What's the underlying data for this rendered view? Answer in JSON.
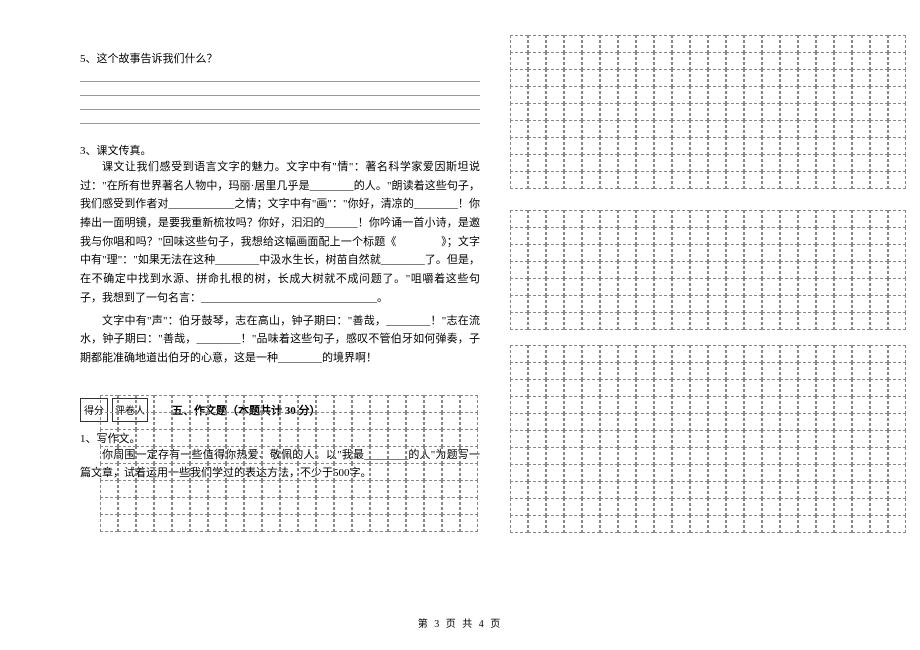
{
  "q5_label": "5、这个故事告诉我们什么？",
  "section3_label": "3、课文传真。",
  "section3_text": "课文让我们感受到语言文字的魅力。文字中有\"情\"：著名科学家爱因斯坦说过：\"在所有世界著名人物中，玛丽·居里几乎是________的人。\"朗读着这些句子，我们感受到作者对____________之情；文字中有\"画\"：\"你好，清凉的________！你捧出一面明镜，是要我重新梳妆吗？你好，汩汩的______！你吟诵一首小诗，是邀我与你唱和吗？\"回味这些句子，我想给这幅画面配上一个标题《　　　　》；文字中有\"理\"：\"如果无法在这种________中汲水生长，树苗自然就________了。但是，在不确定中找到水源、拼命扎根的树，长成大树就不成问题了。\"咀嚼着这些句子，我想到了一句名言：________________________________。",
  "section3_text2": "文字中有\"声\"：伯牙鼓琴，志在高山，钟子期曰：\"善哉，________！\"志在流水，钟子期曰：\"善哉，________！\"品味着这些句子，感叹不管伯牙如何弹奏，子期都能准确地道出伯牙的心意，这是一种________的境界啊！",
  "score_label1": "得分",
  "score_label2": "评卷人",
  "section5_title": "五、作文题（本题共计 30 分）",
  "essay_label": "1、写作文。",
  "essay_text": "你周围一定存有一些值得你热爱、敬佩的人。以\"我最________的人\"为题写一篇文章，试着运用一些我们学过的表达方法，不少于500字。",
  "footer": "第 3 页 共 4 页",
  "grid1": {
    "cols": 21,
    "rows": 8
  },
  "grid2": {
    "cols": 22,
    "rows": 9
  },
  "grid3": {
    "cols": 22,
    "rows": 7
  },
  "grid4": {
    "cols": 22,
    "rows": 11
  }
}
